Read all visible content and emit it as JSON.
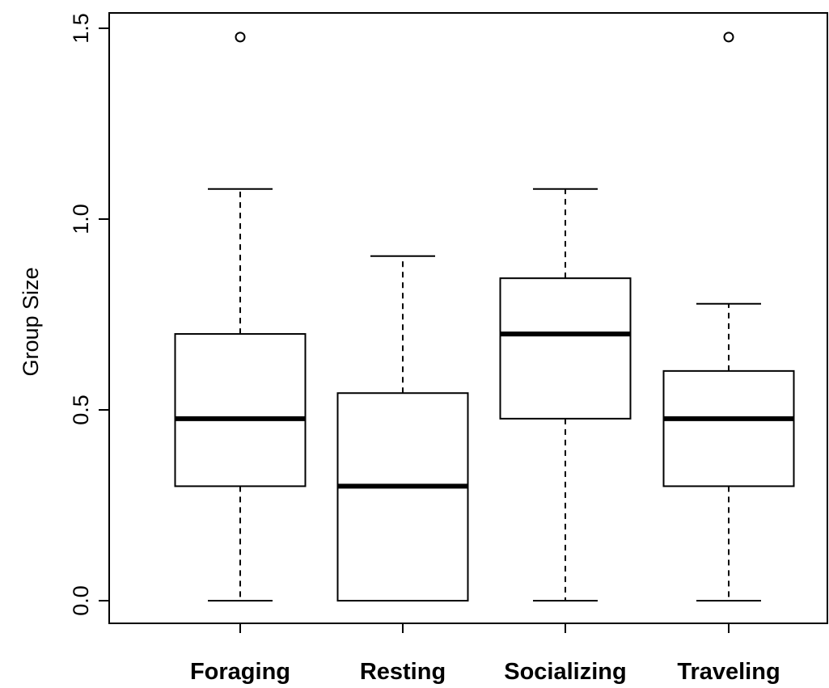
{
  "chart_data": {
    "type": "boxplot",
    "title": "",
    "xlabel": "",
    "ylabel": "Group Size",
    "ylim": [
      -0.05,
      1.55
    ],
    "yticks": [
      {
        "value": 0.0,
        "label": "0.0"
      },
      {
        "value": 0.5,
        "label": "0.5"
      },
      {
        "value": 1.0,
        "label": "1.0"
      },
      {
        "value": 1.5,
        "label": "1.5"
      }
    ],
    "categories": [
      "Foraging",
      "Resting",
      "Socializing",
      "Traveling"
    ],
    "boxes": [
      {
        "category": "Foraging",
        "whisker_low": 0.0,
        "q1": 0.3,
        "median": 0.477,
        "q3": 0.699,
        "whisker_high": 1.079,
        "outliers": [
          1.477
        ]
      },
      {
        "category": "Resting",
        "whisker_low": 0.0,
        "q1": 0.0,
        "median": 0.3,
        "q3": 0.544,
        "whisker_high": 0.903,
        "outliers": []
      },
      {
        "category": "Socializing",
        "whisker_low": 0.0,
        "q1": 0.477,
        "median": 0.699,
        "q3": 0.845,
        "whisker_high": 1.079,
        "outliers": []
      },
      {
        "category": "Traveling",
        "whisker_low": 0.0,
        "q1": 0.3,
        "median": 0.477,
        "q3": 0.602,
        "whisker_high": 0.778,
        "outliers": [
          1.477
        ]
      }
    ],
    "grid": false,
    "legend": "none",
    "colors": {
      "box_fill": "#ffffff",
      "stroke": "#000000"
    }
  }
}
